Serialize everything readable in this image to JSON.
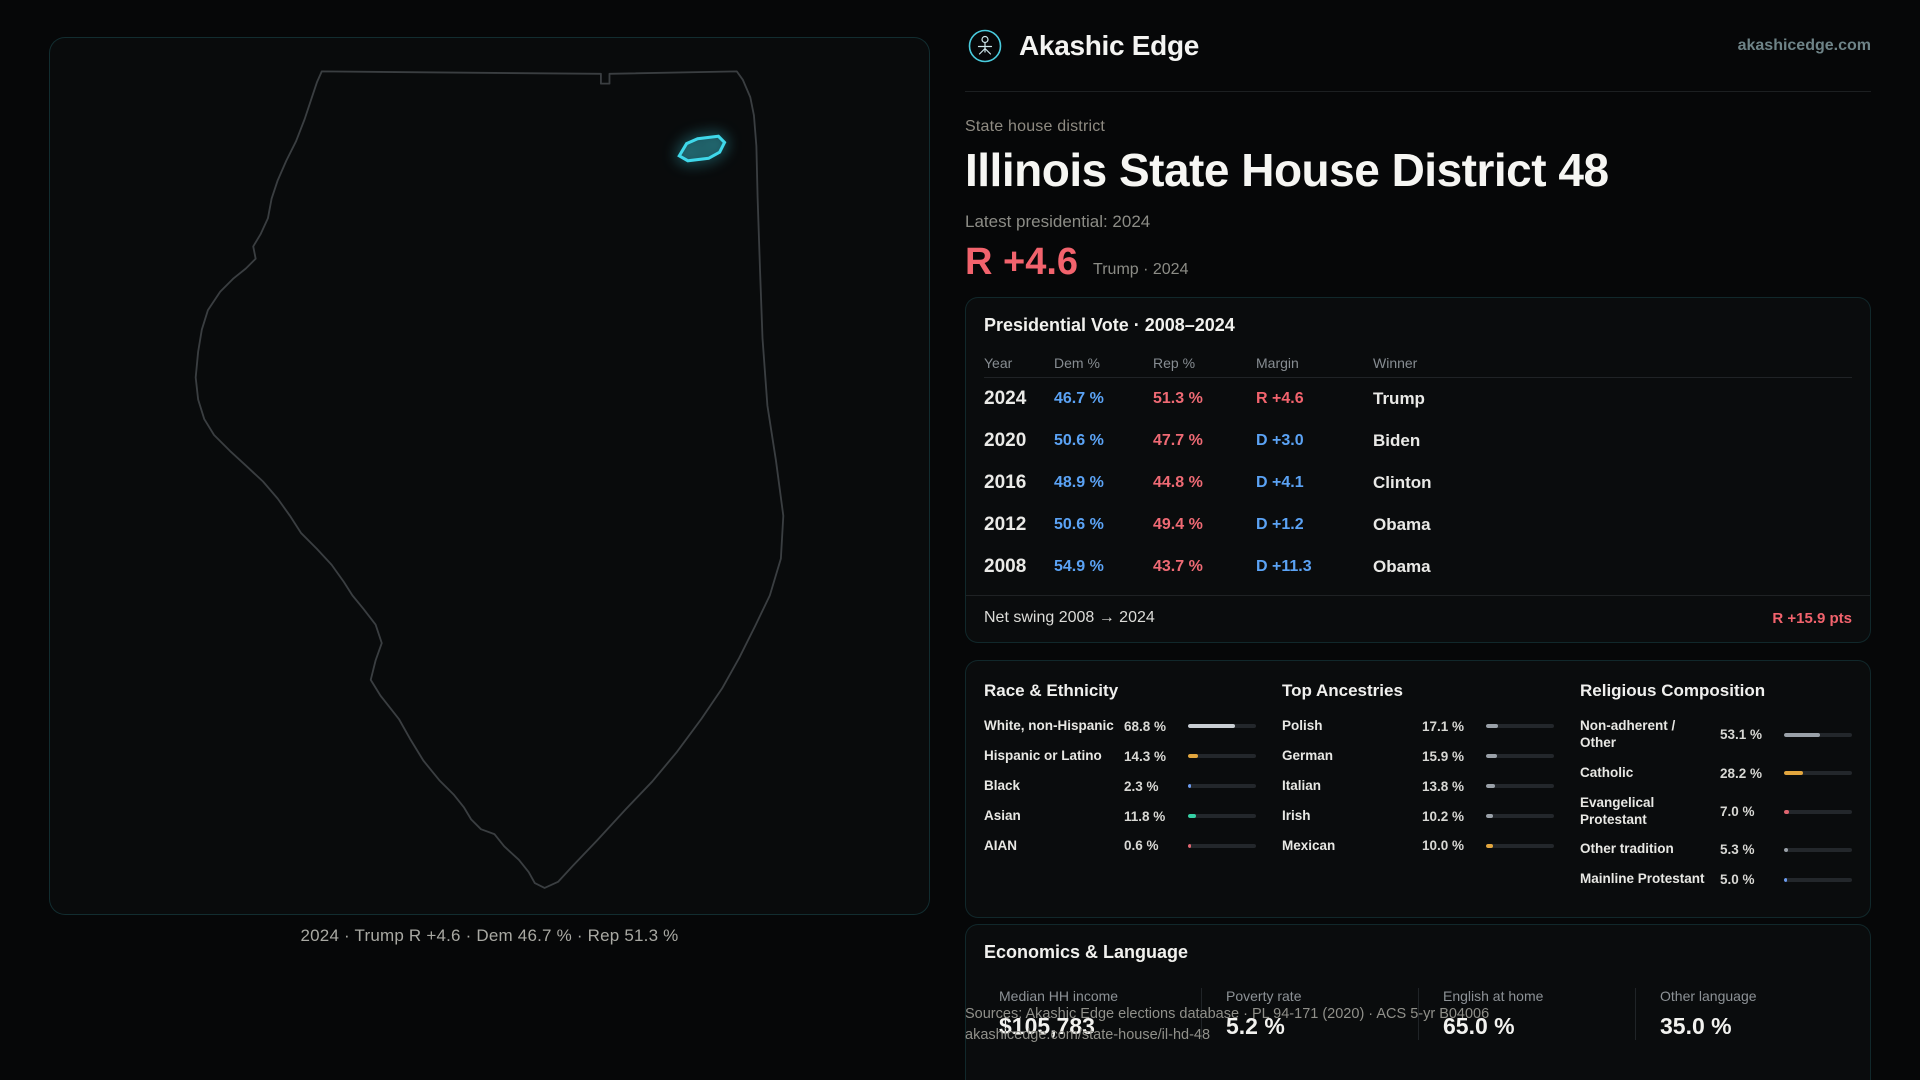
{
  "header": {
    "brand": "Akashic Edge",
    "site": "akashicedge.com"
  },
  "hero": {
    "kicker": "State house district",
    "title": "Illinois State House District 48",
    "latest_label": "Latest presidential: 2024",
    "margin_value": "R +4.6",
    "margin_detail": "Trump · 2024"
  },
  "map": {
    "caption": "2024 · Trump R +4.6 · Dem 46.7 % · Rep 51.3 %",
    "highlight_color": "#3fd8ea"
  },
  "presidential_table": {
    "title": "Presidential Vote · 2008–2024",
    "columns": [
      "Year",
      "Dem %",
      "Rep %",
      "Margin",
      "Winner"
    ],
    "rows": [
      {
        "year": "2024",
        "dem": "46.7 %",
        "rep": "51.3 %",
        "margin": "R +4.6",
        "margin_color": "#f2636d",
        "winner": "Trump"
      },
      {
        "year": "2020",
        "dem": "50.6 %",
        "rep": "47.7 %",
        "margin": "D +3.0",
        "margin_color": "#5ba3f5",
        "winner": "Biden"
      },
      {
        "year": "2016",
        "dem": "48.9 %",
        "rep": "44.8 %",
        "margin": "D +4.1",
        "margin_color": "#5ba3f5",
        "winner": "Clinton"
      },
      {
        "year": "2012",
        "dem": "50.6 %",
        "rep": "49.4 %",
        "margin": "D +1.2",
        "margin_color": "#5ba3f5",
        "winner": "Obama"
      },
      {
        "year": "2008",
        "dem": "54.9 %",
        "rep": "43.7 %",
        "margin": "D +11.3",
        "margin_color": "#5ba3f5",
        "winner": "Obama"
      }
    ],
    "footer_label": "Net swing 2008 → 2024",
    "footer_value": "R +15.9 pts"
  },
  "demographics": {
    "race": {
      "title": "Race & Ethnicity",
      "rows": [
        {
          "label": "White, non-Hispanic",
          "value": "68.8 %",
          "pct": 68.8,
          "color": "#c9ced3"
        },
        {
          "label": "Hispanic or Latino",
          "value": "14.3 %",
          "pct": 14.3,
          "color": "#e2a63e"
        },
        {
          "label": "Black",
          "value": "2.3 %",
          "pct": 2.3,
          "color": "#6b9bee"
        },
        {
          "label": "Asian",
          "value": "11.8 %",
          "pct": 11.8,
          "color": "#35d0a4"
        },
        {
          "label": "AIAN",
          "value": "0.6 %",
          "pct": 0.6,
          "color": "#e0656f"
        }
      ]
    },
    "ancestries": {
      "title": "Top Ancestries",
      "rows": [
        {
          "label": "Polish",
          "value": "17.1 %",
          "pct": 17.1,
          "color": "#9aa1a8"
        },
        {
          "label": "German",
          "value": "15.9 %",
          "pct": 15.9,
          "color": "#9aa1a8"
        },
        {
          "label": "Italian",
          "value": "13.8 %",
          "pct": 13.8,
          "color": "#9aa1a8"
        },
        {
          "label": "Irish",
          "value": "10.2 %",
          "pct": 10.2,
          "color": "#9aa1a8"
        },
        {
          "label": "Mexican",
          "value": "10.0 %",
          "pct": 10.0,
          "color": "#e2a63e"
        }
      ]
    },
    "religion": {
      "title": "Religious Composition",
      "rows": [
        {
          "label": "Non-adherent / Other",
          "value": "53.1 %",
          "pct": 53.1,
          "color": "#9aa1a8"
        },
        {
          "label": "Catholic",
          "value": "28.2 %",
          "pct": 28.2,
          "color": "#e2a63e"
        },
        {
          "label": "Evangelical Protestant",
          "value": "7.0 %",
          "pct": 7.0,
          "color": "#e0656f"
        },
        {
          "label": "Other tradition",
          "value": "5.3 %",
          "pct": 5.3,
          "color": "#9aa1a8"
        },
        {
          "label": "Mainline Protestant",
          "value": "5.0 %",
          "pct": 5.0,
          "color": "#6b9bee"
        }
      ]
    }
  },
  "economics": {
    "title": "Economics & Language",
    "stats": [
      {
        "label": "Median HH income",
        "value": "$105,783"
      },
      {
        "label": "Poverty rate",
        "value": "5.2 %"
      },
      {
        "label": "English at home",
        "value": "65.0 %"
      },
      {
        "label": "Other language",
        "value": "35.0 %"
      }
    ]
  },
  "footer": {
    "sources": "Sources: Akashic Edge elections database · PL 94-171 (2020) · ACS 5-yr B04006",
    "permalink": "akashicedge.com/state-house/il-hd-48"
  }
}
